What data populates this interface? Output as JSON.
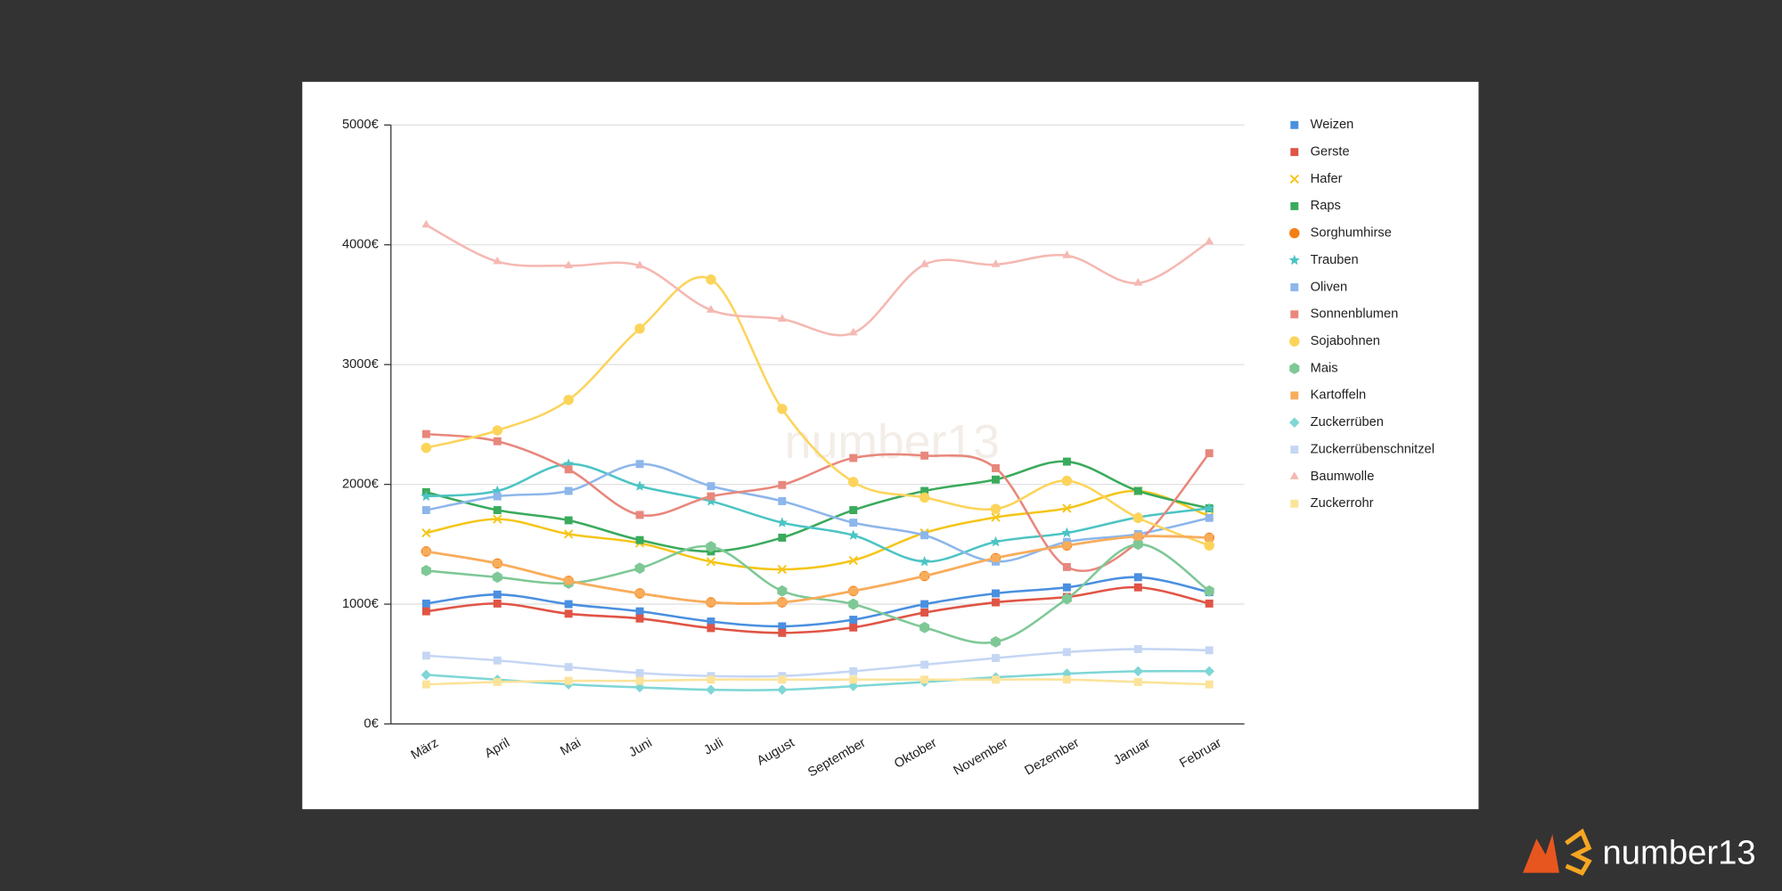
{
  "chart_data": {
    "type": "line",
    "categories": [
      "März",
      "April",
      "Mai",
      "Juni",
      "Juli",
      "August",
      "September",
      "Oktober",
      "November",
      "Dezember",
      "Januar",
      "Februar"
    ],
    "ylim": [
      0,
      5000
    ],
    "yticks": [
      {
        "value": 0,
        "label": "0€"
      },
      {
        "value": 1000,
        "label": "1000€"
      },
      {
        "value": 2000,
        "label": "2000€"
      },
      {
        "value": 3000,
        "label": "3000€"
      },
      {
        "value": 4000,
        "label": "4000€"
      },
      {
        "value": 5000,
        "label": "5000€"
      }
    ],
    "grid": true,
    "smooth": true,
    "legend": "right",
    "watermark": "number13",
    "series": [
      {
        "name": "Weizen",
        "color": "#4a8fe0",
        "marker": "square",
        "values": [
          1005,
          1080,
          1000,
          940,
          855,
          815,
          870,
          1000,
          1090,
          1140,
          1225,
          1100
        ]
      },
      {
        "name": "Gerste",
        "color": "#e05445",
        "marker": "square",
        "values": [
          940,
          1005,
          920,
          880,
          800,
          760,
          805,
          930,
          1015,
          1060,
          1140,
          1005
        ]
      },
      {
        "name": "Hafer",
        "color": "#f5c518",
        "marker": "x",
        "values": [
          1595,
          1710,
          1585,
          1510,
          1355,
          1290,
          1365,
          1595,
          1725,
          1800,
          1945,
          1735
        ]
      },
      {
        "name": "Raps",
        "color": "#3aaa5c",
        "marker": "square",
        "values": [
          1935,
          1785,
          1700,
          1535,
          1440,
          1555,
          1785,
          1945,
          2040,
          2190,
          1945,
          1800
        ]
      },
      {
        "name": "Sorghumhirse",
        "color": "#f47f17",
        "marker": "circle",
        "values": [
          1440,
          1340,
          1195,
          1090,
          1015,
          1015,
          1110,
          1235,
          1385,
          1490,
          1565,
          1555
        ]
      },
      {
        "name": "Trauben",
        "color": "#4cc4c4",
        "marker": "star",
        "values": [
          1900,
          1945,
          2170,
          1985,
          1860,
          1680,
          1575,
          1355,
          1520,
          1595,
          1725,
          1800
        ]
      },
      {
        "name": "Oliven",
        "color": "#8db6ea",
        "marker": "square",
        "values": [
          1785,
          1900,
          1945,
          2170,
          1985,
          1860,
          1680,
          1575,
          1355,
          1520,
          1585,
          1720
        ]
      },
      {
        "name": "Sonnenblumen",
        "color": "#e8877c",
        "marker": "square",
        "values": [
          2420,
          2360,
          2125,
          1745,
          1900,
          1995,
          2220,
          2240,
          2135,
          1310,
          1520,
          2260
        ]
      },
      {
        "name": "Sojabohnen",
        "color": "#fcd45a",
        "marker": "circle",
        "values": [
          2305,
          2450,
          2705,
          3300,
          3710,
          2630,
          2020,
          1890,
          1795,
          2030,
          1720,
          1490
        ]
      },
      {
        "name": "Mais",
        "color": "#7ec896",
        "marker": "hexagon",
        "values": [
          1280,
          1225,
          1175,
          1300,
          1480,
          1110,
          1000,
          805,
          685,
          1045,
          1500,
          1110
        ]
      },
      {
        "name": "Kartoffeln",
        "color": "#f8ad5c",
        "marker": "square",
        "values": [
          1440,
          1340,
          1195,
          1090,
          1015,
          1015,
          1110,
          1235,
          1385,
          1490,
          1565,
          1555
        ]
      },
      {
        "name": "Zuckerrüben",
        "color": "#7fd6d6",
        "marker": "diamond",
        "values": [
          410,
          370,
          330,
          305,
          285,
          285,
          315,
          350,
          390,
          420,
          440,
          440
        ]
      },
      {
        "name": "Zuckerrübenschnitzel",
        "color": "#c5d6f4",
        "marker": "square",
        "values": [
          570,
          530,
          475,
          425,
          400,
          400,
          440,
          495,
          550,
          600,
          625,
          615
        ]
      },
      {
        "name": "Baumwolle",
        "color": "#f5b8b2",
        "marker": "triangle",
        "values": [
          4165,
          3860,
          3825,
          3825,
          3455,
          3380,
          3265,
          3835,
          3835,
          3910,
          3680,
          4025
        ]
      },
      {
        "name": "Zuckerrohr",
        "color": "#fbe39a",
        "marker": "square",
        "values": [
          330,
          350,
          360,
          360,
          370,
          370,
          370,
          370,
          370,
          370,
          350,
          330
        ]
      }
    ]
  }
}
